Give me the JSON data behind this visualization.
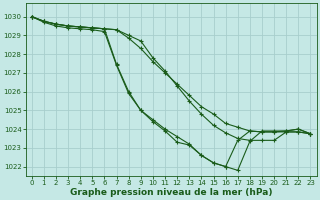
{
  "background_color": "#c5e8e5",
  "grid_color": "#a8cecc",
  "line_color": "#1a5c1a",
  "marker_color": "#1a5c1a",
  "xlabel": "Graphe pression niveau de la mer (hPa)",
  "xlabel_fontsize": 6.5,
  "xlim": [
    -0.5,
    23.5
  ],
  "ylim": [
    1021.5,
    1030.7
  ],
  "yticks": [
    1022,
    1023,
    1024,
    1025,
    1026,
    1027,
    1028,
    1029,
    1030
  ],
  "xticks": [
    0,
    1,
    2,
    3,
    4,
    5,
    6,
    7,
    8,
    9,
    10,
    11,
    12,
    13,
    14,
    15,
    16,
    17,
    18,
    19,
    20,
    21,
    22,
    23
  ],
  "series": [
    [
      1030.0,
      1029.7,
      1029.5,
      1029.4,
      1029.35,
      1029.3,
      1029.2,
      1027.4,
      1025.9,
      1025.0,
      1024.5,
      1024.0,
      1023.6,
      1023.2,
      1022.6,
      1022.2,
      1022.0,
      1023.4,
      1023.9,
      1023.85,
      1023.85,
      1023.9,
      1024.0,
      1023.75
    ],
    [
      1030.0,
      1029.75,
      1029.6,
      1029.5,
      1029.45,
      1029.4,
      1029.35,
      1029.3,
      1028.85,
      1028.3,
      1027.6,
      1027.0,
      1026.4,
      1025.8,
      1025.2,
      1024.8,
      1024.3,
      1024.1,
      1023.9,
      1023.85,
      1023.85,
      1023.85,
      1023.85,
      1023.75
    ],
    [
      1030.0,
      1029.75,
      1029.6,
      1029.5,
      1029.45,
      1029.4,
      1029.35,
      1029.3,
      1029.0,
      1028.7,
      1027.8,
      1027.1,
      1026.3,
      1025.5,
      1024.8,
      1024.2,
      1023.8,
      1023.5,
      1023.4,
      1023.4,
      1023.4,
      1023.85,
      1023.85,
      1023.75
    ],
    [
      1030.0,
      1029.75,
      1029.6,
      1029.5,
      1029.45,
      1029.4,
      1029.35,
      1027.45,
      1026.0,
      1025.0,
      1024.4,
      1023.9,
      1023.3,
      1023.15,
      1022.6,
      1022.2,
      1022.0,
      1021.8,
      1023.35,
      1023.9,
      1023.9,
      1023.9,
      1024.0,
      1023.75
    ]
  ]
}
